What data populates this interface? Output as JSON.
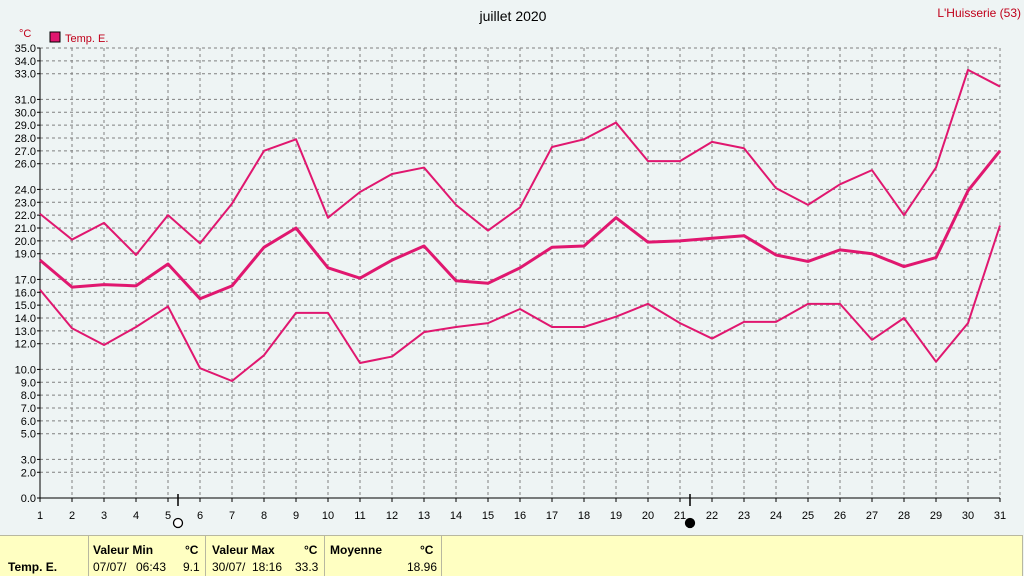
{
  "chart_data": {
    "type": "line",
    "title": "juillet 2020",
    "station": "L'Huisserie (53)",
    "unit_label": "°C",
    "legend": {
      "label": "Temp. E.",
      "placement": "top-left"
    },
    "x": [
      1,
      2,
      3,
      4,
      5,
      6,
      7,
      8,
      9,
      10,
      11,
      12,
      13,
      14,
      15,
      16,
      17,
      18,
      19,
      20,
      21,
      22,
      23,
      24,
      25,
      26,
      27,
      28,
      29,
      30,
      31
    ],
    "xlim": [
      1,
      31
    ],
    "ylim": [
      0,
      35
    ],
    "yticks": [
      "0.0",
      "2.0",
      "3.0",
      "5.0",
      "6.0",
      "7.0",
      "8.0",
      "9.0",
      "10.0",
      "12.0",
      "13.0",
      "14.0",
      "15.0",
      "16.0",
      "17.0",
      "19.0",
      "20.0",
      "21.0",
      "22.0",
      "23.0",
      "24.0",
      "26.0",
      "27.0",
      "28.0",
      "29.0",
      "30.0",
      "31.0",
      "33.0",
      "34.0",
      "35.0"
    ],
    "grid": true,
    "color": "#e0176f",
    "series": [
      {
        "key": "max",
        "values": [
          22.1,
          20.1,
          21.4,
          18.9,
          22.0,
          19.8,
          22.9,
          27.0,
          27.9,
          21.8,
          23.8,
          25.2,
          25.7,
          22.8,
          20.8,
          22.6,
          27.3,
          27.9,
          29.2,
          26.2,
          26.2,
          27.7,
          27.2,
          24.1,
          22.8,
          24.4,
          25.5,
          22.0,
          25.7,
          33.3,
          32.0
        ]
      },
      {
        "key": "mean",
        "values": [
          18.5,
          16.4,
          16.6,
          16.5,
          18.2,
          15.5,
          16.5,
          19.5,
          21.0,
          17.9,
          17.1,
          18.5,
          19.6,
          16.9,
          16.7,
          17.9,
          19.5,
          19.6,
          21.8,
          19.9,
          20.0,
          20.2,
          20.4,
          18.9,
          18.4,
          19.3,
          19.0,
          18.0,
          18.7,
          23.9,
          27.0
        ]
      },
      {
        "key": "min",
        "values": [
          16.2,
          13.2,
          11.9,
          13.3,
          14.9,
          10.1,
          9.1,
          11.1,
          14.4,
          14.4,
          10.5,
          11.0,
          12.9,
          13.3,
          13.6,
          14.7,
          13.3,
          13.3,
          14.1,
          15.1,
          13.6,
          12.4,
          13.7,
          13.7,
          15.1,
          15.1,
          12.3,
          14.0,
          10.6,
          13.6,
          21.2
        ]
      }
    ],
    "moon_phases": [
      {
        "day": 5,
        "phase": "full-moon"
      },
      {
        "day": 21,
        "phase": "new-moon"
      }
    ]
  },
  "stats": {
    "row_label": "Temp. E.",
    "min": {
      "header": "Valeur Min",
      "unit": "°C",
      "date": "07/07/",
      "time": "06:43",
      "value": "9.1"
    },
    "max": {
      "header": "Valeur Max",
      "unit": "°C",
      "date": "30/07/",
      "time": "18:16",
      "value": "33.3"
    },
    "mean": {
      "header": "Moyenne",
      "unit": "°C",
      "value": "18.96"
    }
  }
}
